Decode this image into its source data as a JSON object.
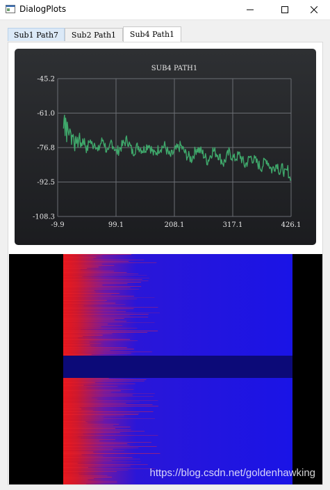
{
  "window": {
    "title": "DialogPlots",
    "icons": {
      "app": "dialog-app-icon",
      "minimize": "minimize-icon",
      "maximize": "maximize-icon",
      "close": "close-icon"
    }
  },
  "tabs": [
    {
      "label": "Sub1 Path7"
    },
    {
      "label": "Sub2 Path1"
    },
    {
      "label": "Sub4 Path1",
      "active": true
    }
  ],
  "chart_data": {
    "type": "line",
    "title": "SUB4 PATH1",
    "xlabel": "",
    "ylabel": "",
    "xlim": [
      -9.9,
      426.1
    ],
    "ylim": [
      -108.3,
      -45.2
    ],
    "x_ticks": [
      "-9.9",
      "99.1",
      "208.1",
      "317.1",
      "426.1"
    ],
    "y_ticks": [
      "-45.2",
      "-61.0",
      "-76.8",
      "-92.5",
      "-108.3"
    ],
    "grid": true,
    "background": "#1f2023",
    "line_color": "#3fa86b",
    "series": [
      {
        "x": [
          1,
          2,
          3,
          4,
          5,
          6,
          7,
          8,
          10,
          12,
          14,
          16,
          18,
          20,
          22,
          25,
          28,
          31,
          34,
          37,
          40,
          45,
          50,
          55,
          60,
          65,
          70,
          75,
          80,
          85,
          90,
          95,
          100,
          110,
          120,
          130,
          140,
          150,
          160,
          170,
          180,
          190,
          200,
          210,
          220,
          230,
          240,
          250,
          260,
          270,
          280,
          290,
          300,
          310,
          320,
          330,
          340,
          350,
          360,
          370,
          380,
          390,
          400,
          405,
          410,
          415,
          420,
          425
        ],
        "y": [
          -68,
          -64,
          -60,
          -70,
          -63,
          -66,
          -72,
          -67,
          -69,
          -71,
          -67,
          -74,
          -70,
          -72,
          -76,
          -73,
          -75,
          -71,
          -77,
          -73,
          -74,
          -78,
          -73,
          -76,
          -74,
          -79,
          -75,
          -73,
          -77,
          -80,
          -74,
          -76,
          -79,
          -76,
          -73,
          -79,
          -76,
          -78,
          -75,
          -80,
          -77,
          -76,
          -81,
          -78,
          -76,
          -80,
          -82,
          -77,
          -79,
          -83,
          -78,
          -80,
          -84,
          -79,
          -82,
          -80,
          -85,
          -81,
          -83,
          -86,
          -82,
          -87,
          -84,
          -88,
          -86,
          -89,
          -87,
          -92
        ]
      }
    ]
  },
  "spectrogram": {
    "type": "heatmap",
    "colors": {
      "low": "#1a14e6",
      "high": "#e6141a",
      "band": "#0c0a78",
      "pad": "#000000"
    }
  },
  "watermark": "https://blog.csdn.net/goldenhawking"
}
